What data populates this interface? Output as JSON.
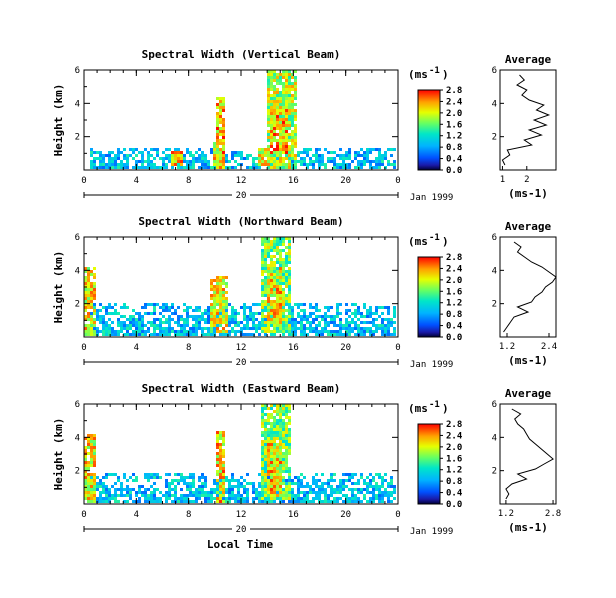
{
  "figure": {
    "x_axis_label": "Local Time",
    "date_label": "Jan 1999",
    "colorbar_unit_base": "(ms",
    "colorbar_unit_exp": "-1",
    "colorbar_unit_close": ")",
    "average_title": "Average",
    "average_unit": "(ms-1)"
  },
  "chart_data": [
    {
      "type": "heatmap",
      "title": "Spectral Width (Vertical Beam)",
      "ylabel": "Height (km)",
      "x_ticks": [
        "0",
        "4",
        "8",
        "12",
        "16",
        "20",
        "0"
      ],
      "x_range_hours": [
        0,
        24
      ],
      "day_label": "20",
      "y_ticks": [
        "2",
        "4",
        "6"
      ],
      "y_range_km": [
        0,
        6
      ],
      "colorbar_ticks": [
        "0.0",
        "0.4",
        "0.8",
        "1.2",
        "1.6",
        "2.0",
        "2.4",
        "2.8"
      ],
      "colorbar_range": [
        0,
        2.8
      ],
      "average_profile": {
        "x_ticks": [
          "1",
          "2"
        ],
        "x_range": [
          0.9,
          3.2
        ],
        "y_range_km": [
          0,
          6
        ],
        "y_ticks": [
          "2",
          "4",
          "6"
        ],
        "height_km": [
          0.3,
          0.6,
          0.9,
          1.2,
          1.5,
          1.8,
          2.1,
          2.4,
          2.7,
          3.0,
          3.3,
          3.6,
          3.9,
          4.2,
          4.5,
          4.8,
          5.1,
          5.4,
          5.7
        ],
        "width": [
          1.1,
          1.0,
          1.3,
          1.2,
          2.2,
          1.9,
          2.6,
          2.1,
          2.8,
          2.3,
          2.9,
          2.4,
          2.7,
          2.1,
          1.8,
          2.0,
          1.6,
          1.9,
          1.7
        ]
      },
      "features": [
        {
          "hour": 10.3,
          "width_h": 0.35,
          "bottom_km": 0.2,
          "top_km": 4.4,
          "level": 2.8
        },
        {
          "hour": 15.0,
          "width_h": 1.1,
          "bottom_km": 0.2,
          "top_km": 6.0,
          "level": 2.4
        },
        {
          "hour": 14.8,
          "width_h": 0.6,
          "bottom_km": 1.0,
          "top_km": 4.0,
          "level": 2.8
        },
        {
          "hour": 7.0,
          "width_h": 0.4,
          "bottom_km": 0.3,
          "top_km": 1.3,
          "level": 2.7
        },
        {
          "hour": 10.0,
          "width_h": 0.3,
          "bottom_km": 0.4,
          "top_km": 1.7,
          "level": 2.6
        },
        {
          "hour": 13.6,
          "width_h": 0.4,
          "bottom_km": 0.4,
          "top_km": 1.4,
          "level": 2.5
        }
      ],
      "background_layer": {
        "start_hour": 0.4,
        "end_hour": 23.7,
        "bottom_km": 0.15,
        "top_km": 1.4
      }
    },
    {
      "type": "heatmap",
      "title": "Spectral Width (Northward Beam)",
      "ylabel": "Height (km)",
      "x_ticks": [
        "0",
        "4",
        "8",
        "12",
        "16",
        "20",
        "0"
      ],
      "x_range_hours": [
        0,
        24
      ],
      "day_label": "20",
      "y_ticks": [
        "2",
        "4",
        "6"
      ],
      "y_range_km": [
        0,
        6
      ],
      "colorbar_ticks": [
        "0.0",
        "0.4",
        "0.8",
        "1.2",
        "1.6",
        "2.0",
        "2.4",
        "2.8"
      ],
      "colorbar_range": [
        0,
        2.8
      ],
      "average_profile": {
        "x_ticks": [
          "1.2",
          "2.4"
        ],
        "x_range": [
          1.0,
          2.6
        ],
        "y_range_km": [
          0,
          6
        ],
        "y_ticks": [
          "2",
          "4",
          "6"
        ],
        "height_km": [
          0.3,
          0.6,
          0.9,
          1.2,
          1.5,
          1.8,
          2.1,
          2.4,
          2.7,
          3.0,
          3.3,
          3.6,
          3.9,
          4.2,
          4.5,
          4.8,
          5.1,
          5.4,
          5.7
        ],
        "width": [
          1.1,
          1.2,
          1.3,
          1.4,
          1.8,
          1.5,
          1.9,
          2.0,
          2.2,
          2.3,
          2.5,
          2.6,
          2.4,
          2.2,
          1.9,
          1.7,
          1.5,
          1.6,
          1.4
        ]
      },
      "features": [
        {
          "hour": 0.3,
          "width_h": 0.4,
          "bottom_km": 0.2,
          "top_km": 4.3,
          "level": 2.6
        },
        {
          "hour": 10.2,
          "width_h": 0.6,
          "bottom_km": 0.3,
          "top_km": 3.8,
          "level": 2.6
        },
        {
          "hour": 14.5,
          "width_h": 1.2,
          "bottom_km": 0.3,
          "top_km": 6.0,
          "level": 2.2
        },
        {
          "hour": 14.5,
          "width_h": 0.6,
          "bottom_km": 0.8,
          "top_km": 4.2,
          "level": 2.7
        }
      ],
      "background_layer": {
        "start_hour": 0.3,
        "end_hour": 23.8,
        "bottom_km": 0.1,
        "top_km": 2.2
      }
    },
    {
      "type": "heatmap",
      "title": "Spectral Width (Eastward Beam)",
      "ylabel": "Height (km)",
      "x_ticks": [
        "0",
        "4",
        "8",
        "12",
        "16",
        "20",
        "0"
      ],
      "x_range_hours": [
        0,
        24
      ],
      "day_label": "20",
      "y_ticks": [
        "2",
        "4",
        "6"
      ],
      "y_range_km": [
        0,
        6
      ],
      "colorbar_ticks": [
        "0.0",
        "0.4",
        "0.8",
        "1.2",
        "1.6",
        "2.0",
        "2.4",
        "2.8"
      ],
      "colorbar_range": [
        0,
        2.8
      ],
      "average_profile": {
        "x_ticks": [
          "1.2",
          "2.8"
        ],
        "x_range": [
          1.0,
          2.9
        ],
        "y_range_km": [
          0,
          6
        ],
        "y_ticks": [
          "2",
          "4",
          "6"
        ],
        "height_km": [
          0.3,
          0.6,
          0.9,
          1.2,
          1.5,
          1.8,
          2.1,
          2.4,
          2.7,
          3.0,
          3.3,
          3.6,
          3.9,
          4.2,
          4.5,
          4.8,
          5.1,
          5.4,
          5.7
        ],
        "width": [
          1.2,
          1.3,
          1.2,
          1.4,
          1.9,
          1.6,
          2.2,
          2.5,
          2.8,
          2.6,
          2.4,
          2.2,
          2.0,
          1.9,
          1.8,
          1.6,
          1.5,
          1.7,
          1.4
        ]
      },
      "features": [
        {
          "hour": 0.3,
          "width_h": 0.4,
          "bottom_km": 0.2,
          "top_km": 4.2,
          "level": 2.6
        },
        {
          "hour": 10.3,
          "width_h": 0.35,
          "bottom_km": 0.2,
          "top_km": 4.5,
          "level": 2.7
        },
        {
          "hour": 14.5,
          "width_h": 1.2,
          "bottom_km": 0.3,
          "top_km": 6.0,
          "level": 2.2
        },
        {
          "hour": 14.4,
          "width_h": 0.6,
          "bottom_km": 0.5,
          "top_km": 3.8,
          "level": 2.7
        }
      ],
      "background_layer": {
        "start_hour": 0.3,
        "end_hour": 23.8,
        "bottom_km": 0.1,
        "top_km": 2.0
      }
    }
  ]
}
